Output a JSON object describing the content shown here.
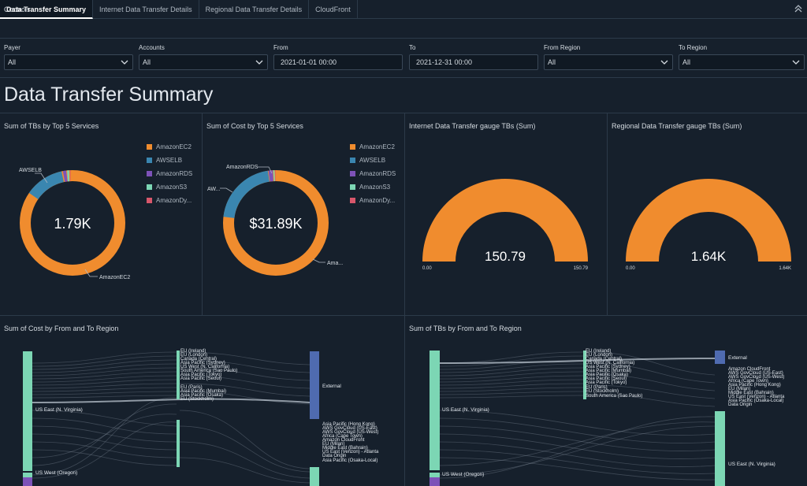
{
  "tabs": [
    {
      "label": "Data Transfer Summary",
      "active": true
    },
    {
      "label": "Internet Data Transfer Details",
      "active": false
    },
    {
      "label": "Regional Data Transfer Details",
      "active": false
    },
    {
      "label": "CloudFront",
      "active": false
    }
  ],
  "controls": {
    "title": "Controls",
    "payer": {
      "label": "Payer",
      "value": "All"
    },
    "accounts": {
      "label": "Accounts",
      "value": "All"
    },
    "from": {
      "label": "From",
      "value": "2021-01-01 00:00"
    },
    "to": {
      "label": "To",
      "value": "2021-12-31 00:00"
    },
    "from_region": {
      "label": "From Region",
      "value": "All"
    },
    "to_region": {
      "label": "To Region",
      "value": "All"
    }
  },
  "page_title": "Data Transfer Summary",
  "colors": {
    "ec2": "#f08c2e",
    "elb": "#3a86b0",
    "rds": "#7d52b8",
    "s3": "#7cd6b4",
    "dyn": "#d8576b",
    "external": "#4f6bb0",
    "bg": "#16202c"
  },
  "panels": {
    "tbs_services": {
      "title": "Sum of TBs by Top 5 Services",
      "center": "1.79K",
      "callouts": {
        "awselb": "AWSELB",
        "amazonec2": "AmazonEC2"
      },
      "legend": [
        "AmazonEC2",
        "AWSELB",
        "AmazonRDS",
        "AmazonS3",
        "AmazonDy..."
      ]
    },
    "cost_services": {
      "title": "Sum of Cost by Top 5 Services",
      "center": "$31.89K",
      "callouts": {
        "amazonrds": "AmazonRDS",
        "aw": "AW...",
        "ama": "Ama..."
      },
      "legend": [
        "AmazonEC2",
        "AWSELB",
        "AmazonRDS",
        "AmazonS3",
        "AmazonDy..."
      ]
    },
    "internet_gauge": {
      "title": "Internet Data Transfer gauge TBs (Sum)",
      "value": "150.79",
      "min": "0.00",
      "max": "150.79"
    },
    "regional_gauge": {
      "title": "Regional Data Transfer gauge TBs (Sum)",
      "value": "1.64K",
      "min": "0.00",
      "max": "1.64K"
    },
    "cost_region": {
      "title": "Sum of Cost by From and To Region",
      "sources": [
        "US East (N. Virginia)",
        "US West (Oregon)"
      ],
      "mid_upper": [
        "EU (Ireland)",
        "EU (London)",
        "Canada (Central)",
        "Asia Pacific (Sydney)",
        "US West (N. California)",
        "South America (Sao Paulo)",
        "Asia Pacific (Tokyo)",
        "Asia Pacific (Seoul)",
        "EU (Paris)",
        "Asia Pacific (Mumbai)",
        "Asia Pacific (Osaka)",
        "EU (Stockholm)"
      ],
      "external": "External",
      "mid_lower": [
        "Asia Pacific (Hong Kong)",
        "AWS GovCloud (US-East)",
        "AWS GovCloud (US-West)",
        "Africa (Cape Town)",
        "Amazon CloudFront",
        "EU (Milan)",
        "Middle East (Bahrain)",
        "US East (Verizon) - Atlanta",
        "Data Origin",
        "Asia Pacific (Osaka-Local)"
      ]
    },
    "tbs_region": {
      "title": "Sum of TBs by From and To Region",
      "sources": [
        "US East (N. Virginia)",
        "US West (Oregon)"
      ],
      "mid_upper": [
        "EU (Ireland)",
        "EU (London)",
        "Canada (Central)",
        "US West (N. California)",
        "Asia Pacific (Sydney)",
        "Asia Pacific (Mumbai)",
        "Asia Pacific (Osaka)",
        "Asia Pacific (Seoul)",
        "Asia Pacific (Tokyo)",
        "EU (Paris)",
        "EU (Stockholm)",
        "South America (Sao Paulo)"
      ],
      "external": "External",
      "right_list": [
        "Amazon CloudFront",
        "AWS GovCloud (US-East)",
        "AWS GovCloud (US-West)",
        "Africa (Cape Town)",
        "Asia Pacific (Hong Kong)",
        "EU (Milan)",
        "Middle East (Bahrain)",
        "US East (Verizon) - Atlanta",
        "Asia Pacific (Osaka-Local)",
        "Data Origin"
      ],
      "dest_virginia": "US East (N. Virginia)"
    }
  }
}
